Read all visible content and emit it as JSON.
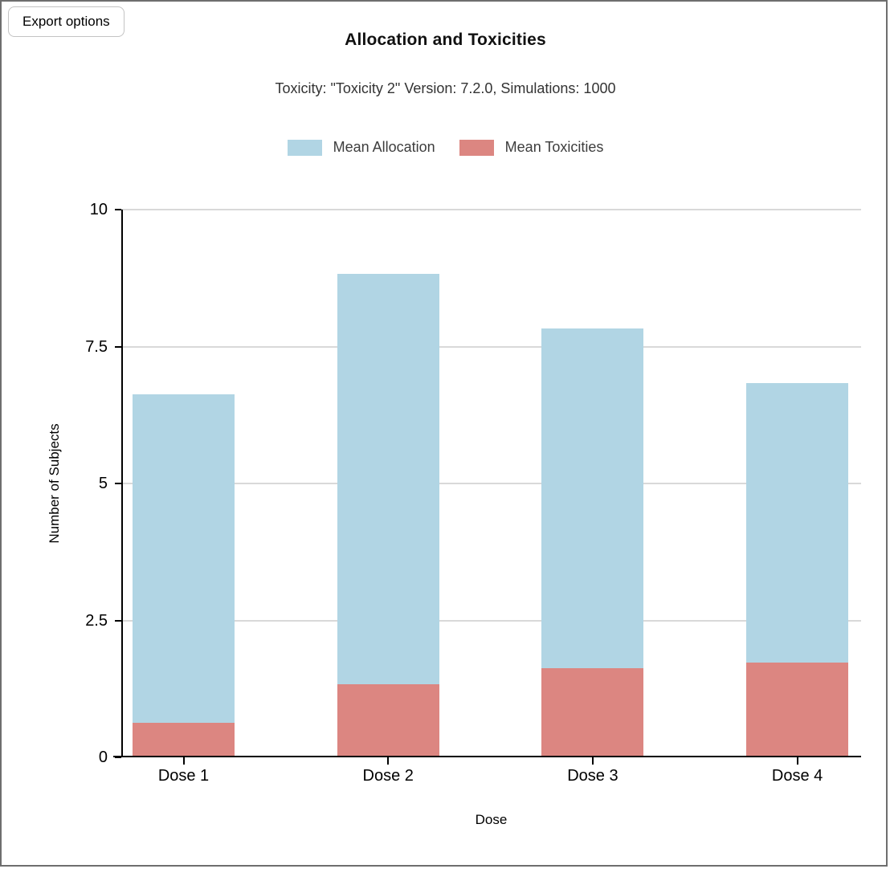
{
  "window": {
    "border_color": "#6e6e6e"
  },
  "toolbar": {
    "export_button_label": "Export options"
  },
  "header": {
    "title": "Allocation and Toxicities",
    "subtitle": "Toxicity: \"Toxicity 2\" Version: 7.2.0, Simulations: 1000"
  },
  "legend": [
    {
      "label": "Mean Allocation",
      "color": "#b1d5e4"
    },
    {
      "label": "Mean Toxicities",
      "color": "#dc8681"
    }
  ],
  "chart_data": {
    "type": "bar",
    "title": "Allocation and Toxicities",
    "subtitle": "Toxicity: \"Toxicity 2\" Version: 7.2.0, Simulations: 1000",
    "categories": [
      "Dose 1",
      "Dose 2",
      "Dose 3",
      "Dose 4"
    ],
    "series": [
      {
        "name": "Mean Allocation",
        "color": "#b1d5e4",
        "values": [
          6.6,
          8.8,
          7.8,
          6.8
        ]
      },
      {
        "name": "Mean Toxicities",
        "color": "#dc8681",
        "values": [
          0.6,
          1.3,
          1.6,
          1.7
        ]
      }
    ],
    "series_layout": "overlaid-from-zero",
    "xlabel": "Dose",
    "ylabel": "Number of Subjects",
    "ylim": [
      0,
      10
    ],
    "yticks": [
      0,
      2.5,
      5,
      7.5,
      10
    ],
    "ytick_labels": [
      "0",
      "2.5",
      "5",
      "7.5",
      "10"
    ],
    "grid": true,
    "gridline_color": "#d9d9d9",
    "legend_position": "top"
  }
}
